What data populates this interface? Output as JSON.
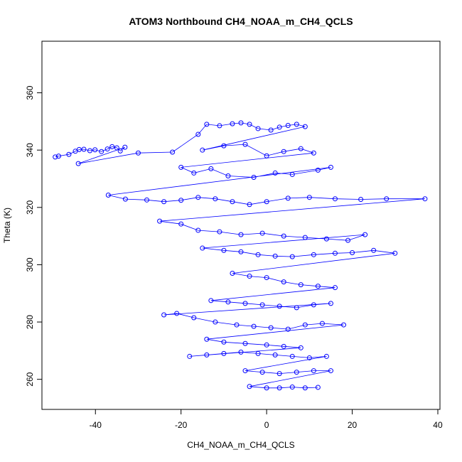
{
  "chart_data": {
    "type": "scatter",
    "title": "ATOM3 Northbound CH4_NOAA_m_CH4_QCLS",
    "xlabel": "CH4_NOAA_m_CH4_QCLS",
    "ylabel": "Theta (K)",
    "xlim": [
      -52.5,
      40.5
    ],
    "ylim": [
      249.5,
      378
    ],
    "x_ticks": [
      -40,
      -20,
      0,
      20,
      40
    ],
    "y_ticks": [
      260,
      280,
      300,
      320,
      340,
      360
    ],
    "x_tick_labels": [
      "-40",
      "-20",
      "0",
      "20",
      "40"
    ],
    "y_tick_labels": [
      "260",
      "280",
      "300",
      "320",
      "340",
      "360"
    ],
    "marker": "open-circle",
    "connected_lines": true,
    "grid": false,
    "legend": "none",
    "colors": {
      "series": "#0000ff",
      "axis": "#000000"
    },
    "series": [
      {
        "x": [
          -49.4,
          -48.6,
          -46.2,
          -44.7,
          -43.8,
          -42.7,
          -41.3,
          -40.1,
          -38.6,
          -37.2,
          -36.1,
          -35.0,
          -34.2,
          -33.1,
          -44.0,
          -30.0,
          -22.0,
          -16.0,
          -14.0,
          -11.0,
          -8.0,
          -6.0,
          -4.0,
          -2.0,
          1.0,
          3.0,
          5.0,
          7.0,
          9.0,
          -15.0,
          -10.0,
          -5.0,
          0.0,
          4.0,
          8.0,
          11.0,
          -20.0,
          -17.0,
          -13.0,
          -9.0,
          -3.0,
          2.0,
          6.0,
          12.0,
          15.0,
          -37.0,
          -33.0,
          -28.0,
          -24.0,
          -20.0,
          -16.0,
          -12.0,
          -8.0,
          -4.0,
          0.0,
          5.0,
          10.0,
          16.0,
          22.0,
          28.0,
          37.0,
          -25.0,
          -20.0,
          -16.0,
          -11.0,
          -6.0,
          -1.0,
          4.0,
          9.0,
          14.0,
          19.0,
          23.0,
          -15.0,
          -10.0,
          -6.0,
          -2.0,
          2.0,
          6.0,
          11.0,
          16.0,
          20.0,
          25.0,
          30.0,
          -8.0,
          -4.0,
          0.0,
          4.0,
          8.0,
          12.0,
          16.0,
          -13.0,
          -9.0,
          -5.0,
          -1.0,
          3.0,
          7.0,
          11.0,
          15.0,
          -24.0,
          -21.0,
          -17.0,
          -12.0,
          -7.0,
          -3.0,
          1.0,
          5.0,
          9.0,
          13.0,
          18.0,
          -14.0,
          -10.0,
          -5.0,
          0.0,
          4.0,
          8.0,
          -18.0,
          -14.0,
          -10.0,
          -6.0,
          -2.0,
          2.0,
          6.0,
          10.0,
          14.0,
          -5.0,
          -1.0,
          3.0,
          7.0,
          11.0,
          15.0,
          -4.0,
          0.0,
          3.0,
          6.0,
          9.0,
          12.0
        ],
        "y": [
          337.6,
          337.9,
          338.5,
          339.6,
          340.2,
          340.3,
          339.8,
          340.1,
          339.5,
          340.4,
          341.2,
          340.8,
          339.7,
          341.0,
          335.3,
          339.0,
          339.3,
          345.5,
          349.0,
          348.5,
          349.2,
          349.5,
          349.0,
          347.5,
          347.0,
          348.0,
          348.6,
          349.0,
          348.2,
          340.0,
          341.5,
          342.0,
          338.0,
          339.5,
          340.5,
          339.0,
          334.0,
          332.0,
          333.5,
          331.0,
          330.5,
          332.0,
          331.5,
          333.0,
          334.0,
          324.3,
          322.9,
          322.6,
          322.0,
          322.5,
          323.5,
          323.0,
          322.0,
          321.0,
          322.0,
          323.2,
          323.5,
          323.0,
          322.8,
          323.0,
          323.0,
          315.2,
          314.2,
          312.0,
          311.5,
          310.5,
          311.0,
          310.0,
          309.5,
          309.0,
          308.5,
          310.5,
          305.8,
          305.0,
          304.5,
          303.5,
          303.0,
          302.8,
          303.5,
          304.0,
          304.2,
          305.0,
          304.0,
          297.0,
          296.0,
          295.5,
          294.0,
          293.0,
          292.5,
          292.0,
          287.5,
          287.0,
          286.5,
          286.0,
          285.5,
          285.0,
          286.0,
          286.5,
          282.5,
          283.0,
          281.5,
          280.0,
          279.0,
          278.5,
          278.0,
          277.5,
          279.0,
          279.5,
          279.0,
          274.0,
          273.0,
          272.5,
          272.0,
          271.5,
          271.0,
          268.0,
          268.5,
          269.0,
          269.5,
          269.0,
          268.5,
          268.0,
          267.5,
          268.0,
          263.0,
          262.5,
          262.0,
          262.5,
          263.0,
          263.0,
          257.5,
          257.0,
          257.0,
          257.3,
          257.0,
          257.2
        ]
      }
    ]
  }
}
